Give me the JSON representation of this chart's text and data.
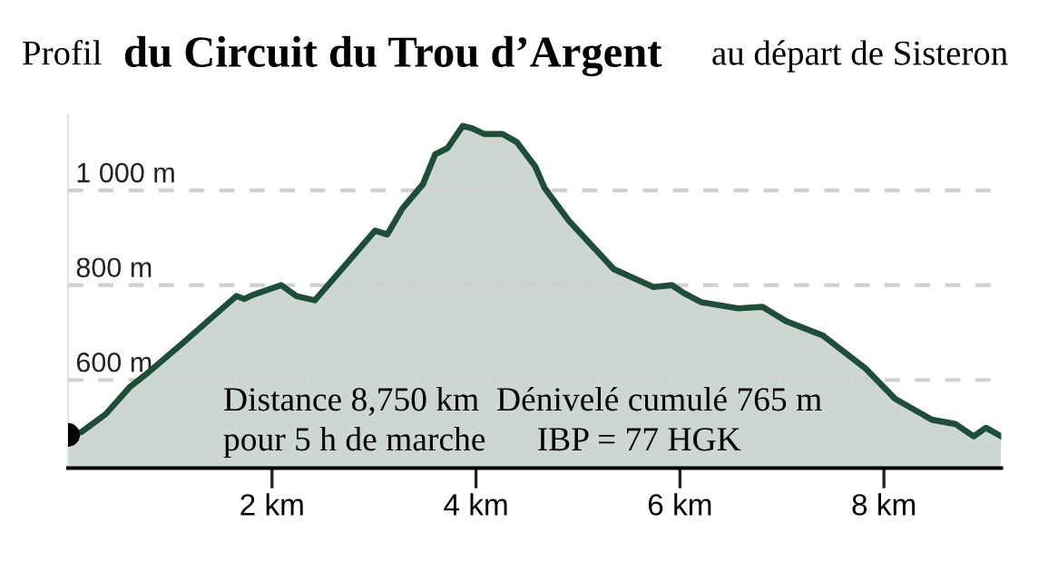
{
  "chart_data": {
    "type": "area",
    "title": "du Circuit du Trou d’Argent",
    "annotations": [
      "Profil",
      "au départ de Sisteron",
      "Distance 8,750 km  Dénivelé cumulé 765 m",
      "pour 5 h de marche      IBP = 77 HGK"
    ],
    "series": [
      {
        "color": "#1f4d3c",
        "x": [
          0,
          0.13,
          0.37,
          0.61,
          0.76,
          1.11,
          1.65,
          1.73,
          1.82,
          2.09,
          2.24,
          2.42,
          3.01,
          3.13,
          3.28,
          3.48,
          3.6,
          3.72,
          3.87,
          3.96,
          4.08,
          4.26,
          4.4,
          4.58,
          4.67,
          4.91,
          5.35,
          5.74,
          5.92,
          6.04,
          6.21,
          6.57,
          6.81,
          7.04,
          7.4,
          7.82,
          8.11,
          8.47,
          8.7,
          8.88,
          9.0,
          9.15
        ],
        "values": [
          484,
          490,
          528,
          586,
          611,
          675,
          777,
          771,
          780,
          800,
          777,
          768,
          915,
          907,
          962,
          1013,
          1076,
          1089,
          1136,
          1131,
          1119,
          1119,
          1102,
          1051,
          1006,
          936,
          834,
          796,
          800,
          783,
          764,
          751,
          754,
          724,
          694,
          624,
          560,
          516,
          507,
          481,
          499,
          481
        ]
      }
    ],
    "xlim": [
      0,
      9.15
    ],
    "ylim": [
      414,
      1160
    ],
    "xticks": [
      {
        "value": 2,
        "label": "2 km"
      },
      {
        "value": 4,
        "label": "4 km"
      },
      {
        "value": 6,
        "label": "6 km"
      },
      {
        "value": 8,
        "label": "8 km"
      }
    ],
    "yticks": [
      {
        "value": 600,
        "label": "600 m"
      },
      {
        "value": 800,
        "label": "800 m"
      },
      {
        "value": 1000,
        "label": "1 000 m"
      }
    ],
    "grid": "y"
  }
}
